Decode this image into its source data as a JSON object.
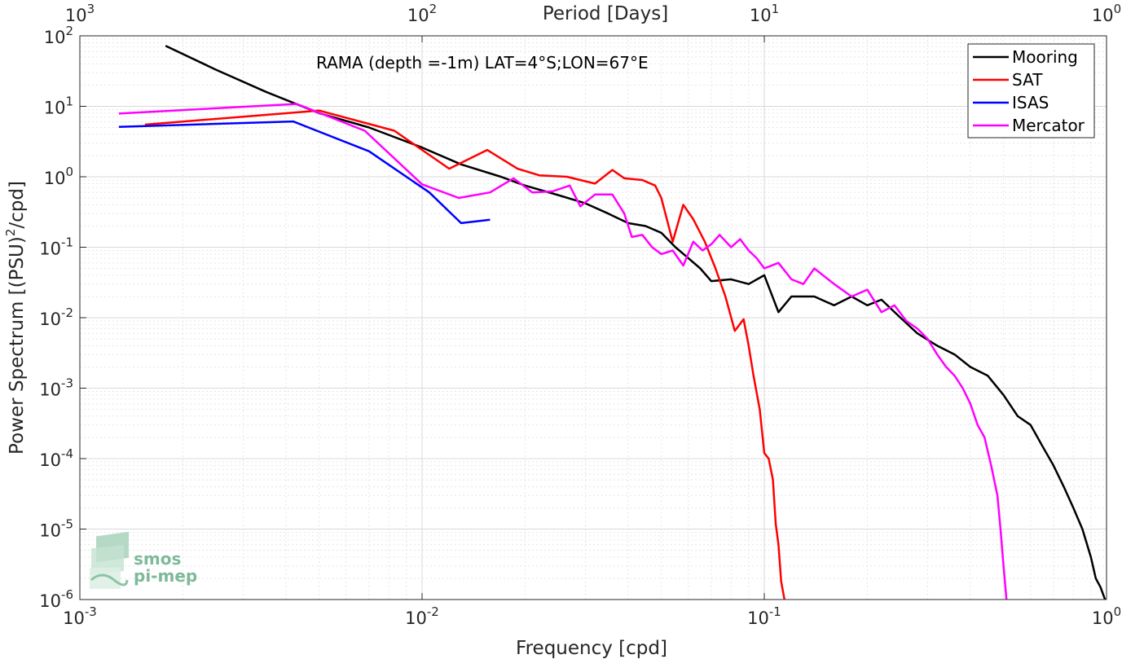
{
  "chart_data": {
    "type": "line",
    "title": "RAMA (depth =-1m) LAT=4°S;LON=67°E",
    "xlabel": "Frequency [cpd]",
    "ylabel_prefix": "Power Spectrum [(PSU)",
    "ylabel_sup": "2",
    "ylabel_suffix": "/cpd]",
    "x2label": "Period [Days]",
    "xscale": "log",
    "yscale": "log",
    "xlim": [
      0.001,
      1
    ],
    "ylim": [
      1e-06,
      100
    ],
    "grid": true,
    "legend_position": "top-right",
    "x_ticks": [
      {
        "value": 0.001,
        "base": "10",
        "exp": "-3"
      },
      {
        "value": 0.01,
        "base": "10",
        "exp": "-2"
      },
      {
        "value": 0.1,
        "base": "10",
        "exp": "-1"
      },
      {
        "value": 1,
        "base": "10",
        "exp": "0"
      }
    ],
    "y_ticks": [
      {
        "value": 1e-06,
        "base": "10",
        "exp": "-6"
      },
      {
        "value": 1e-05,
        "base": "10",
        "exp": "-5"
      },
      {
        "value": 0.0001,
        "base": "10",
        "exp": "-4"
      },
      {
        "value": 0.001,
        "base": "10",
        "exp": "-3"
      },
      {
        "value": 0.01,
        "base": "10",
        "exp": "-2"
      },
      {
        "value": 0.1,
        "base": "10",
        "exp": "-1"
      },
      {
        "value": 1,
        "base": "10",
        "exp": "0"
      },
      {
        "value": 10,
        "base": "10",
        "exp": "1"
      },
      {
        "value": 100,
        "base": "10",
        "exp": "2"
      }
    ],
    "x2_ticks": [
      {
        "value": 0.001,
        "base": "10",
        "exp": "3"
      },
      {
        "value": 0.01,
        "base": "10",
        "exp": "2"
      },
      {
        "value": 0.1,
        "base": "10",
        "exp": "1"
      },
      {
        "value": 1,
        "base": "10",
        "exp": "0"
      }
    ],
    "series": [
      {
        "name": "Mooring",
        "color": "#000000",
        "points": [
          [
            0.00178,
            72
          ],
          [
            0.0025,
            33
          ],
          [
            0.0035,
            16
          ],
          [
            0.005,
            8
          ],
          [
            0.007,
            5
          ],
          [
            0.01,
            2.6
          ],
          [
            0.013,
            1.5
          ],
          [
            0.017,
            1.0
          ],
          [
            0.02,
            0.75
          ],
          [
            0.025,
            0.55
          ],
          [
            0.03,
            0.42
          ],
          [
            0.035,
            0.3
          ],
          [
            0.04,
            0.22
          ],
          [
            0.045,
            0.2
          ],
          [
            0.05,
            0.16
          ],
          [
            0.055,
            0.1
          ],
          [
            0.06,
            0.07
          ],
          [
            0.065,
            0.05
          ],
          [
            0.07,
            0.033
          ],
          [
            0.08,
            0.035
          ],
          [
            0.09,
            0.03
          ],
          [
            0.1,
            0.04
          ],
          [
            0.11,
            0.012
          ],
          [
            0.12,
            0.02
          ],
          [
            0.14,
            0.02
          ],
          [
            0.16,
            0.015
          ],
          [
            0.18,
            0.02
          ],
          [
            0.2,
            0.015
          ],
          [
            0.22,
            0.018
          ],
          [
            0.25,
            0.01
          ],
          [
            0.28,
            0.006
          ],
          [
            0.32,
            0.004
          ],
          [
            0.36,
            0.003
          ],
          [
            0.4,
            0.002
          ],
          [
            0.45,
            0.0015
          ],
          [
            0.5,
            0.0008
          ],
          [
            0.55,
            0.0004
          ],
          [
            0.6,
            0.0003
          ],
          [
            0.65,
            0.00015
          ],
          [
            0.7,
            8e-05
          ],
          [
            0.75,
            4e-05
          ],
          [
            0.8,
            2e-05
          ],
          [
            0.85,
            1e-05
          ],
          [
            0.9,
            4e-06
          ],
          [
            0.93,
            2e-06
          ],
          [
            0.96,
            1.5e-06
          ],
          [
            0.99,
            1e-06
          ]
        ]
      },
      {
        "name": "SAT",
        "color": "#ff0000",
        "points": [
          [
            0.00155,
            5.5
          ],
          [
            0.005,
            8.7
          ],
          [
            0.0083,
            4.5
          ],
          [
            0.012,
            1.3
          ],
          [
            0.0155,
            2.4
          ],
          [
            0.019,
            1.3
          ],
          [
            0.022,
            1.05
          ],
          [
            0.0265,
            1.0
          ],
          [
            0.032,
            0.8
          ],
          [
            0.036,
            1.25
          ],
          [
            0.039,
            0.95
          ],
          [
            0.044,
            0.9
          ],
          [
            0.048,
            0.75
          ],
          [
            0.05,
            0.5
          ],
          [
            0.054,
            0.12
          ],
          [
            0.058,
            0.4
          ],
          [
            0.062,
            0.25
          ],
          [
            0.067,
            0.12
          ],
          [
            0.072,
            0.05
          ],
          [
            0.077,
            0.02
          ],
          [
            0.082,
            0.0065
          ],
          [
            0.087,
            0.0095
          ],
          [
            0.09,
            0.004
          ],
          [
            0.093,
            0.0015
          ],
          [
            0.097,
            0.0005
          ],
          [
            0.1,
            0.00012
          ],
          [
            0.103,
            0.0001
          ],
          [
            0.106,
            5e-05
          ],
          [
            0.108,
            1.2e-05
          ],
          [
            0.11,
            6e-06
          ],
          [
            0.112,
            1.8e-06
          ],
          [
            0.115,
            9e-07
          ]
        ]
      },
      {
        "name": "ISAS",
        "color": "#0000ff",
        "points": [
          [
            0.0013,
            5.1
          ],
          [
            0.0042,
            6.1
          ],
          [
            0.007,
            2.3
          ],
          [
            0.0105,
            0.6
          ],
          [
            0.013,
            0.22
          ],
          [
            0.0158,
            0.245
          ]
        ]
      },
      {
        "name": "Mercator",
        "color": "#ff00ff",
        "points": [
          [
            0.0013,
            7.9
          ],
          [
            0.0043,
            10.8
          ],
          [
            0.0068,
            4.5
          ],
          [
            0.01,
            0.78
          ],
          [
            0.0128,
            0.5
          ],
          [
            0.0158,
            0.6
          ],
          [
            0.0185,
            0.95
          ],
          [
            0.021,
            0.6
          ],
          [
            0.024,
            0.62
          ],
          [
            0.027,
            0.75
          ],
          [
            0.029,
            0.38
          ],
          [
            0.032,
            0.56
          ],
          [
            0.036,
            0.56
          ],
          [
            0.039,
            0.3
          ],
          [
            0.041,
            0.14
          ],
          [
            0.044,
            0.15
          ],
          [
            0.047,
            0.1
          ],
          [
            0.05,
            0.08
          ],
          [
            0.054,
            0.09
          ],
          [
            0.058,
            0.055
          ],
          [
            0.062,
            0.12
          ],
          [
            0.066,
            0.09
          ],
          [
            0.07,
            0.11
          ],
          [
            0.074,
            0.15
          ],
          [
            0.08,
            0.1
          ],
          [
            0.085,
            0.13
          ],
          [
            0.09,
            0.09
          ],
          [
            0.095,
            0.07
          ],
          [
            0.1,
            0.05
          ],
          [
            0.11,
            0.06
          ],
          [
            0.12,
            0.035
          ],
          [
            0.13,
            0.03
          ],
          [
            0.14,
            0.05
          ],
          [
            0.16,
            0.03
          ],
          [
            0.18,
            0.02
          ],
          [
            0.2,
            0.025
          ],
          [
            0.22,
            0.012
          ],
          [
            0.24,
            0.015
          ],
          [
            0.26,
            0.009
          ],
          [
            0.28,
            0.007
          ],
          [
            0.3,
            0.005
          ],
          [
            0.32,
            0.003
          ],
          [
            0.34,
            0.002
          ],
          [
            0.36,
            0.0015
          ],
          [
            0.38,
            0.001
          ],
          [
            0.4,
            0.0006
          ],
          [
            0.42,
            0.0003
          ],
          [
            0.44,
            0.0002
          ],
          [
            0.46,
            8e-05
          ],
          [
            0.48,
            3e-05
          ],
          [
            0.49,
            1e-05
          ],
          [
            0.5,
            3e-06
          ],
          [
            0.51,
            1e-06
          ]
        ]
      }
    ]
  },
  "logo": {
    "line1": "smos",
    "line2": "pi-mep"
  }
}
